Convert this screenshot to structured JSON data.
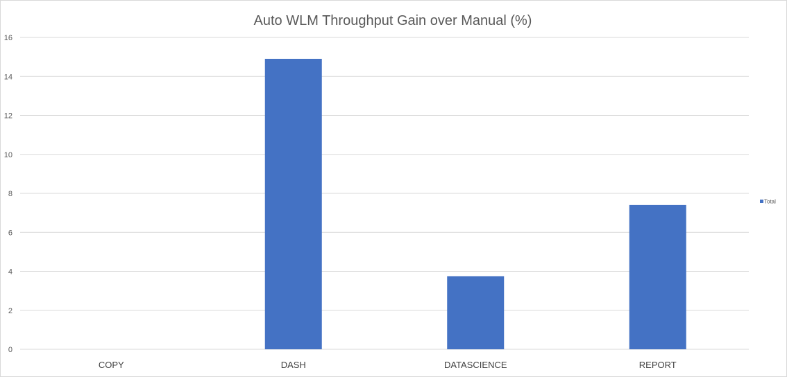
{
  "colors": {
    "bar": "#4472c4",
    "gridline": "#d9d9d9",
    "text": "#595959"
  },
  "chart_data": {
    "type": "bar",
    "title": "Auto WLM Throughput Gain over Manual (%)",
    "xlabel": "",
    "ylabel": "",
    "categories": [
      "COPY",
      "DASH",
      "DATASCIENCE",
      "REPORT"
    ],
    "series": [
      {
        "name": "Total",
        "values": [
          0,
          14.9,
          3.75,
          7.4
        ]
      }
    ],
    "ylim": [
      0,
      16
    ],
    "yticks": [
      0,
      2,
      4,
      6,
      8,
      10,
      12,
      14,
      16
    ],
    "grid": true,
    "legend_position": "right"
  }
}
